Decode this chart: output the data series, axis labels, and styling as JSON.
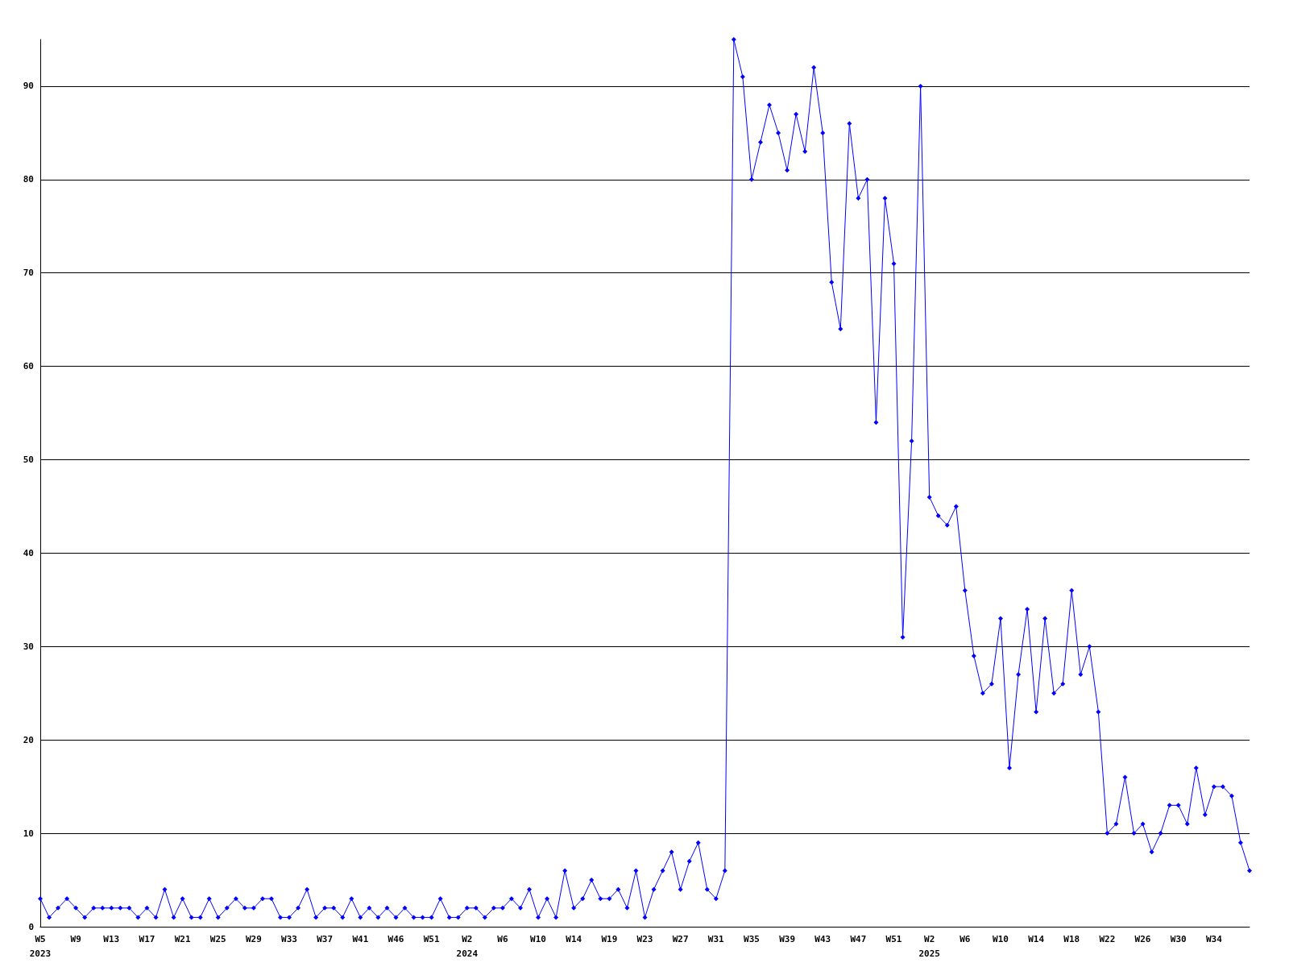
{
  "chart_data": {
    "type": "line",
    "categories": [
      "W5\n2023",
      null,
      null,
      null,
      "W9",
      null,
      null,
      null,
      "W13",
      null,
      null,
      null,
      "W17",
      null,
      null,
      null,
      "W21",
      null,
      null,
      null,
      "W25",
      null,
      null,
      null,
      "W29",
      null,
      null,
      null,
      "W33",
      null,
      null,
      null,
      "W37",
      null,
      null,
      null,
      "W41",
      null,
      null,
      null,
      "W46",
      null,
      null,
      null,
      "W51",
      null,
      null,
      null,
      "W2\n2024",
      null,
      null,
      null,
      "W6",
      null,
      null,
      null,
      "W10",
      null,
      null,
      null,
      "W14",
      null,
      null,
      null,
      "W19",
      null,
      null,
      null,
      "W23",
      null,
      null,
      null,
      "W27",
      null,
      null,
      null,
      "W31",
      null,
      null,
      null,
      "W35",
      null,
      null,
      null,
      "W39",
      null,
      null,
      null,
      "W43",
      null,
      null,
      null,
      "W47",
      null,
      null,
      null,
      "W51",
      null,
      null,
      null,
      "W2\n2025",
      null,
      null,
      null,
      "W6",
      null,
      null,
      null,
      "W10",
      null,
      null,
      null,
      "W14",
      null,
      null,
      null,
      "W18",
      null,
      null,
      null,
      "W22",
      null,
      null,
      null,
      "W26",
      null,
      null,
      null,
      "W30",
      null,
      null,
      null,
      "W34",
      null,
      null,
      null,
      null
    ],
    "values": [
      3,
      1,
      2,
      3,
      2,
      1,
      2,
      2,
      2,
      2,
      2,
      1,
      2,
      1,
      4,
      1,
      3,
      1,
      1,
      3,
      1,
      2,
      3,
      2,
      2,
      3,
      3,
      1,
      1,
      2,
      4,
      1,
      2,
      2,
      1,
      3,
      1,
      2,
      1,
      2,
      1,
      2,
      1,
      1,
      1,
      3,
      1,
      1,
      2,
      2,
      1,
      2,
      2,
      3,
      2,
      4,
      1,
      3,
      1,
      6,
      2,
      3,
      5,
      3,
      3,
      4,
      2,
      6,
      1,
      4,
      6,
      8,
      4,
      7,
      9,
      4,
      3,
      6,
      95,
      91,
      80,
      84,
      88,
      85,
      81,
      87,
      83,
      92,
      85,
      69,
      64,
      86,
      78,
      80,
      54,
      78,
      71,
      31,
      52,
      90,
      46,
      44,
      43,
      45,
      36,
      29,
      25,
      26,
      33,
      17,
      27,
      34,
      23,
      33,
      25,
      26,
      36,
      27,
      30,
      23,
      10,
      11,
      16,
      10,
      11,
      8,
      10,
      13,
      13,
      11,
      17,
      12,
      15,
      15,
      14,
      9,
      6
    ],
    "color": "#0000ff",
    "ylim": [
      0,
      95
    ],
    "yticks": [
      0,
      10,
      20,
      30,
      40,
      50,
      60,
      70,
      80,
      90
    ],
    "grid": "y",
    "marker": "diamond"
  }
}
